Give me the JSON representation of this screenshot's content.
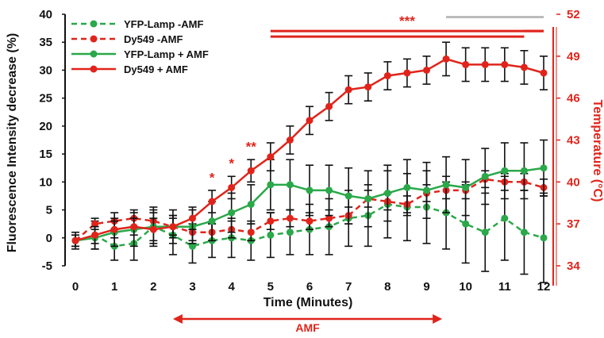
{
  "chart_data": {
    "type": "line",
    "xlabel": "Time (Minutes)",
    "ylabel": "Fluorescence Intensity decrease (%)",
    "y2label": "Temperature (°C)",
    "xlim": [
      0,
      12
    ],
    "ylim": [
      -5,
      40
    ],
    "y2lim": [
      34,
      52
    ],
    "x_ticks": [
      0,
      1,
      2,
      3,
      4,
      5,
      6,
      7,
      8,
      9,
      10,
      11,
      12
    ],
    "y_ticks": [
      -5,
      0,
      5,
      10,
      15,
      20,
      25,
      30,
      35,
      40
    ],
    "y2_ticks": [
      34,
      37,
      40,
      43,
      46,
      49,
      52
    ],
    "legend_position": "top-left",
    "x": [
      0,
      0.5,
      1,
      1.5,
      2,
      2.5,
      3,
      3.5,
      4,
      4.5,
      5,
      5.5,
      6,
      6.5,
      7,
      7.5,
      8,
      8.5,
      9,
      9.5,
      10,
      10.5,
      11,
      11.5,
      12
    ],
    "series": [
      {
        "name": "YFP-Lamp -AMF",
        "color": "#2aa84a",
        "line_style": "dashed",
        "values": [
          -0.5,
          0.5,
          -1.5,
          -1.0,
          2.0,
          0.5,
          -1.5,
          -0.5,
          0.0,
          -0.5,
          0.5,
          1.0,
          1.5,
          2.0,
          3.5,
          4.0,
          6.0,
          5.5,
          5.5,
          4.5,
          2.5,
          1.0,
          3.5,
          1.0,
          0.0
        ],
        "error": [
          1.5,
          2.5,
          2.5,
          3.0,
          3.5,
          3.5,
          3.0,
          3.0,
          3.5,
          3.5,
          4.0,
          4.0,
          4.5,
          5.0,
          5.0,
          5.5,
          6.0,
          6.0,
          6.5,
          6.5,
          7.0,
          7.0,
          7.5,
          7.5,
          8.0
        ]
      },
      {
        "name": "Dy549 -AMF",
        "color": "#e0241b",
        "line_style": "dashed",
        "values": [
          -0.5,
          2.5,
          3.0,
          3.5,
          3.0,
          2.0,
          1.0,
          1.0,
          1.5,
          1.0,
          3.0,
          3.5,
          3.0,
          3.5,
          4.0,
          7.0,
          6.5,
          6.0,
          8.0,
          8.5,
          8.5,
          10.5,
          10.0,
          10.0,
          9.0
        ],
        "error": [
          1.0,
          1.0,
          1.5,
          1.5,
          1.5,
          1.5,
          1.5,
          1.5,
          1.5,
          1.5,
          1.5,
          1.5,
          1.5,
          1.5,
          1.5,
          1.5,
          1.5,
          1.5,
          1.5,
          1.5,
          1.5,
          1.5,
          1.5,
          1.5,
          1.5
        ]
      },
      {
        "name": "YFP-Lamp + AMF",
        "color": "#2aa84a",
        "line_style": "solid",
        "values": [
          -0.5,
          0.0,
          1.0,
          1.5,
          2.0,
          2.0,
          2.0,
          3.0,
          4.5,
          6.0,
          9.5,
          9.5,
          8.5,
          8.5,
          7.5,
          7.0,
          8.0,
          9.0,
          8.5,
          9.5,
          9.0,
          11.0,
          12.0,
          12.0,
          12.5
        ],
        "error": [
          1.0,
          2.0,
          2.5,
          3.0,
          3.0,
          3.0,
          3.0,
          3.5,
          3.5,
          3.5,
          4.5,
          4.5,
          4.5,
          4.5,
          5.0,
          5.0,
          5.0,
          5.0,
          5.0,
          5.0,
          5.0,
          5.0,
          5.0,
          5.0,
          5.0
        ]
      },
      {
        "name": "Dy549 + AMF",
        "color": "#e0241b",
        "line_style": "solid",
        "values": [
          -0.5,
          0.5,
          1.5,
          2.0,
          1.5,
          2.0,
          3.5,
          6.5,
          9.0,
          12.0,
          14.5,
          17.5,
          21.0,
          23.5,
          26.5,
          27.0,
          29.0,
          29.5,
          30.0,
          32.0,
          31.0,
          31.0,
          31.0,
          30.5,
          29.5
        ],
        "error": [
          1.0,
          1.5,
          1.5,
          1.5,
          2.0,
          2.0,
          2.0,
          2.0,
          2.0,
          2.0,
          2.5,
          2.5,
          2.5,
          2.5,
          2.5,
          2.5,
          2.5,
          2.5,
          2.5,
          3.0,
          3.0,
          3.0,
          3.0,
          3.0,
          3.0
        ]
      }
    ],
    "annotations": [
      {
        "text": "*",
        "x": 3.5
      },
      {
        "text": "*",
        "x": 4.0
      },
      {
        "text": "**",
        "x": 4.5
      },
      {
        "text": "***",
        "x": 8.5
      }
    ],
    "significance_bars": [
      {
        "color": "#bbbbbb",
        "x_start": 9.5,
        "x_end": 12.0,
        "y": 39.5
      },
      {
        "color": "#e0241b",
        "x_start": 5.0,
        "x_end": 12.0,
        "y": 37.0
      },
      {
        "color": "#e0241b",
        "x_start": 5.0,
        "x_end": 11.5,
        "y": 36.0
      },
      {
        "color": "#e0241b",
        "x_start": 11.5,
        "x_end": 12.0,
        "y": 37.0
      }
    ],
    "amf_period": {
      "label": "AMF",
      "x_start": 2.5,
      "x_end": 9.4
    }
  }
}
